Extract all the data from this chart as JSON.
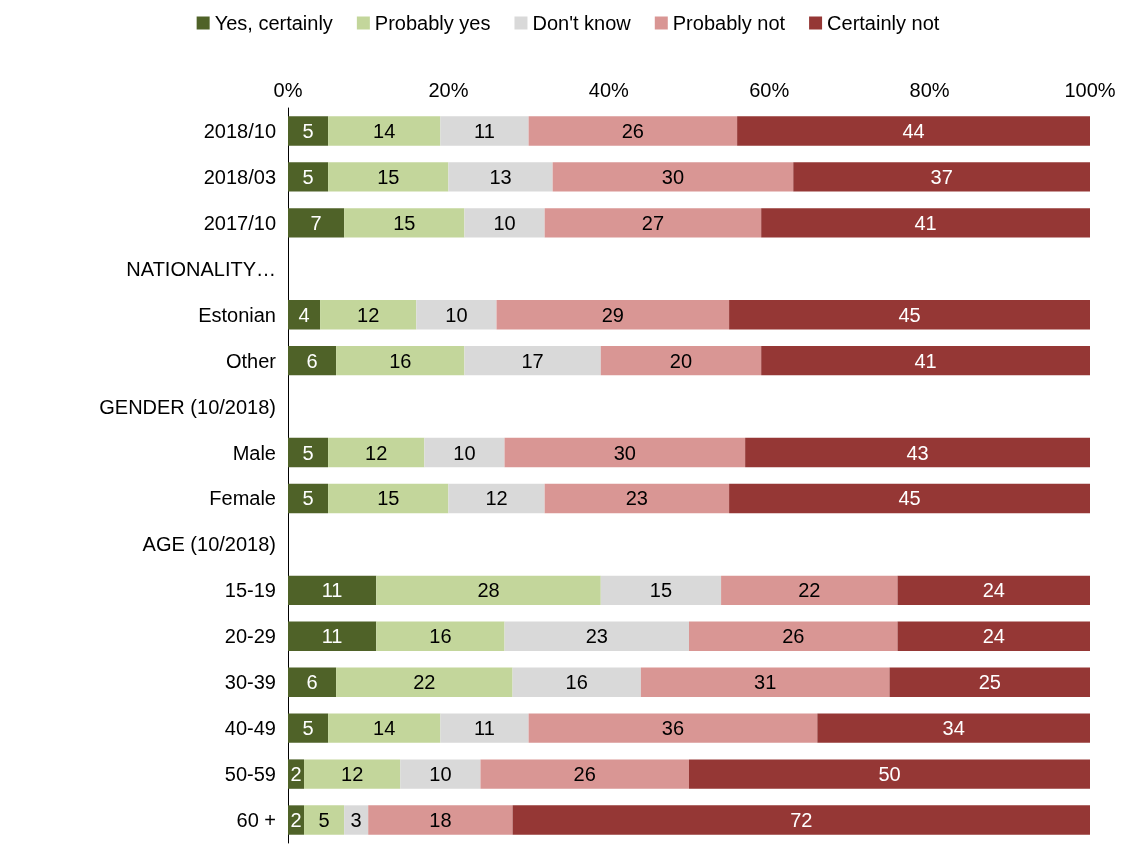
{
  "chart_data": {
    "type": "bar",
    "orientation": "horizontal",
    "stacked": true,
    "data_labels": true,
    "legend": "top",
    "grid": false,
    "categories": [
      "2018/10",
      "2018/03",
      "2017/10",
      "NATIONALITY…",
      "Estonian",
      "Other",
      "GENDER (10/2018)",
      "Male",
      "Female",
      "AGE (10/2018)",
      "15-19",
      "20-29",
      "30-39",
      "40-49",
      "50-59",
      "60 +"
    ],
    "xlim": [
      0,
      100
    ],
    "xticks": [
      {
        "value": 0,
        "label": "0%"
      },
      {
        "value": 20,
        "label": "20%"
      },
      {
        "value": 40,
        "label": "40%"
      },
      {
        "value": 60,
        "label": "60%"
      },
      {
        "value": 80,
        "label": "80%"
      },
      {
        "value": 100,
        "label": "100%"
      }
    ],
    "series": [
      {
        "name": "Yes, certainly",
        "color": "#4f6228",
        "values": [
          5,
          5,
          7,
          null,
          4,
          6,
          null,
          5,
          5,
          null,
          11,
          11,
          6,
          5,
          2,
          2
        ]
      },
      {
        "name": "Probably yes",
        "color": "#c3d69b",
        "values": [
          14,
          15,
          15,
          null,
          12,
          16,
          null,
          12,
          15,
          null,
          28,
          16,
          22,
          14,
          12,
          5
        ]
      },
      {
        "name": "Don't know",
        "color": "#d9d9d9",
        "values": [
          11,
          13,
          10,
          null,
          10,
          17,
          null,
          10,
          12,
          null,
          15,
          23,
          16,
          11,
          10,
          3
        ]
      },
      {
        "name": "Probably not",
        "color": "#d99694",
        "values": [
          26,
          30,
          27,
          null,
          29,
          20,
          null,
          30,
          23,
          null,
          22,
          26,
          31,
          36,
          26,
          18
        ]
      },
      {
        "name": "Certainly not",
        "color": "#953735",
        "values": [
          44,
          37,
          41,
          null,
          45,
          41,
          null,
          43,
          45,
          null,
          24,
          24,
          25,
          34,
          50,
          72
        ]
      }
    ]
  }
}
